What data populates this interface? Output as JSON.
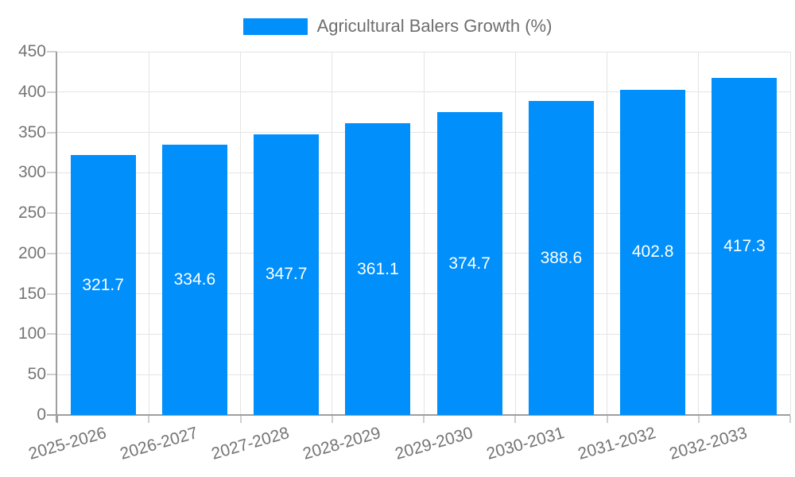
{
  "chart_data": {
    "type": "bar",
    "title": "Agricultural Balers Growth (%)",
    "legend": {
      "position": "top",
      "marker": "rect",
      "label": "Agricultural Balers Growth (%)"
    },
    "categories": [
      "2025-2026",
      "2026-2027",
      "2027-2028",
      "2028-2029",
      "2029-2030",
      "2030-2031",
      "2031-2032",
      "2032-2033"
    ],
    "series": [
      {
        "name": "Agricultural Balers Growth (%)",
        "values": [
          321.7,
          334.6,
          347.7,
          361.1,
          374.7,
          388.6,
          402.8,
          417.3
        ]
      }
    ],
    "xlabel": "",
    "ylabel": "",
    "ylim": [
      0,
      450
    ],
    "y_ticks": [
      0,
      50,
      100,
      150,
      200,
      250,
      300,
      350,
      400,
      450
    ],
    "grid": {
      "horizontal": true,
      "vertical": true
    },
    "colors": {
      "bar": "#008FFB",
      "grid": "#e4e4e4",
      "tickmark": "#cfcfcf",
      "axis": "#9e9e9e",
      "tick_text": "#757575",
      "legend_text": "#6e6e6e",
      "value_text": "#ffffff",
      "background": "#ffffff"
    }
  }
}
